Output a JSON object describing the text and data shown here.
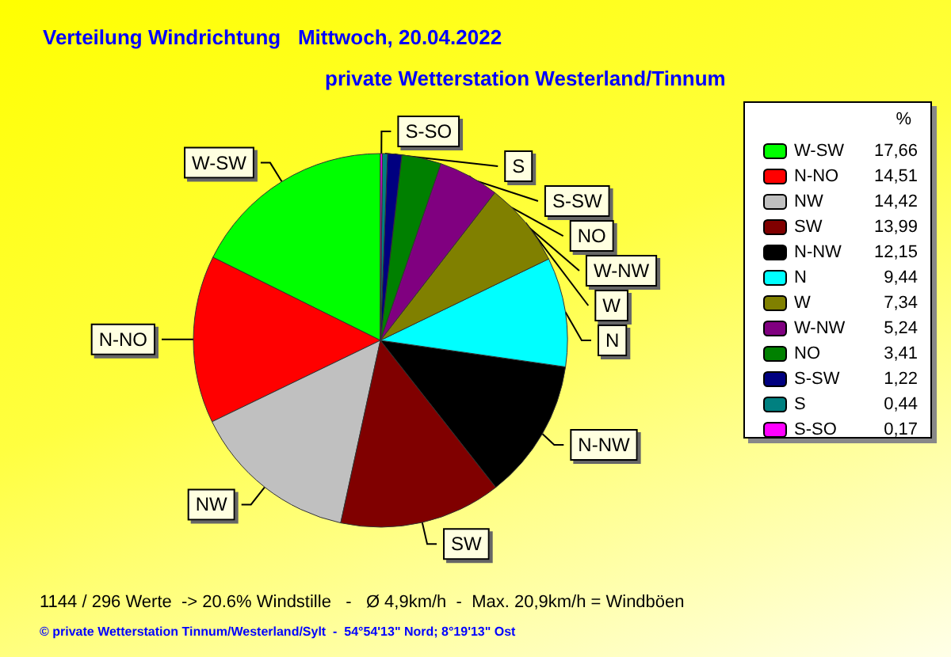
{
  "chart_data": {
    "type": "pie",
    "title": "Verteilung Windrichtung   Mittwoch, 20.04.2022",
    "subtitle": "private Wetterstation Westerland/Tinnum",
    "categories": [
      "W-SW",
      "N-NO",
      "NW",
      "SW",
      "N-NW",
      "N",
      "W",
      "W-NW",
      "NO",
      "S-SW",
      "S",
      "S-SO"
    ],
    "values": [
      17.66,
      14.51,
      14.42,
      13.99,
      12.15,
      9.44,
      7.34,
      5.24,
      3.41,
      1.22,
      0.44,
      0.17
    ],
    "value_labels": [
      "17,66",
      "14,51",
      "14,42",
      "13,99",
      "12,15",
      "9,44",
      "7,34",
      "5,24",
      "3,41",
      "1,22",
      "0,44",
      "0,17"
    ],
    "colors": [
      "#00ff00",
      "#ff0000",
      "#c0c0c0",
      "#800000",
      "#000000",
      "#00ffff",
      "#808000",
      "#800080",
      "#008000",
      "#000080",
      "#008080",
      "#ff00ff"
    ],
    "legend_title": "%",
    "legend": "right",
    "annotations": [
      "1144 / 296 Werte  -> 20.6% Windstille   -   Ø 4,9km/h  -  Max. 20,9km/h = Windböen",
      "© private Wetterstation Tinnum/Westerland/Sylt  -  54°54'13\" Nord; 8°19'13\" Ost"
    ]
  }
}
